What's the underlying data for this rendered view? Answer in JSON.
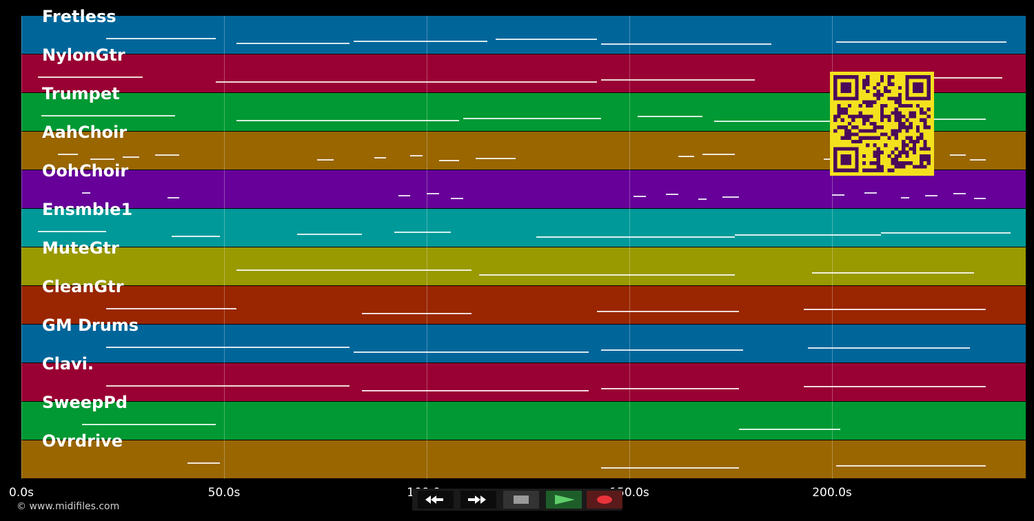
{
  "tracks": [
    {
      "name": "Fretless",
      "color": "#00669a"
    },
    {
      "name": "NylonGtr",
      "color": "#990033"
    },
    {
      "name": "Trumpet",
      "color": "#009933"
    },
    {
      "name": "AahChoir",
      "color": "#996600"
    },
    {
      "name": "OohChoir",
      "color": "#660099"
    },
    {
      "name": "Ensmble1",
      "color": "#009999"
    },
    {
      "name": "MuteGtr",
      "color": "#999900"
    },
    {
      "name": "CleanGtr",
      "color": "#992600"
    },
    {
      "name": "GM Drums",
      "color": "#00669a"
    },
    {
      "name": "Clavi.",
      "color": "#990033"
    },
    {
      "name": "SweepPd",
      "color": "#009933"
    },
    {
      "name": "Ovrdrive",
      "color": "#996600"
    }
  ],
  "timeline": {
    "ticks": [
      "0.0s",
      "50.0s",
      "100.0s",
      "150.0s",
      "200.0s"
    ],
    "tick_values": [
      0,
      50,
      100,
      150,
      200
    ],
    "max_seconds": 248
  },
  "note_segments": [
    [
      [
        21,
        48
      ],
      [
        53,
        81
      ],
      [
        82,
        115
      ],
      [
        117,
        142
      ],
      [
        143,
        185
      ],
      [
        201,
        243
      ]
    ],
    [
      [
        4,
        30
      ],
      [
        48,
        142
      ],
      [
        143,
        181
      ],
      [
        201,
        242
      ]
    ],
    [
      [
        5,
        38
      ],
      [
        53,
        108
      ],
      [
        109,
        143
      ],
      [
        152,
        168
      ],
      [
        171,
        208
      ],
      [
        209,
        238
      ]
    ],
    [
      [
        9,
        14
      ],
      [
        17,
        23
      ],
      [
        25,
        29
      ],
      [
        33,
        39
      ],
      [
        73,
        77
      ],
      [
        87,
        90
      ],
      [
        96,
        99
      ],
      [
        103,
        108
      ],
      [
        112,
        122
      ],
      [
        162,
        166
      ],
      [
        168,
        176
      ],
      [
        198,
        202
      ],
      [
        206,
        210
      ],
      [
        229,
        233
      ],
      [
        234,
        238
      ]
    ],
    [
      [
        15,
        17
      ],
      [
        36,
        39
      ],
      [
        93,
        96
      ],
      [
        100,
        103
      ],
      [
        106,
        109
      ],
      [
        151,
        154
      ],
      [
        159,
        162
      ],
      [
        167,
        169
      ],
      [
        173,
        177
      ],
      [
        200,
        203
      ],
      [
        208,
        211
      ],
      [
        217,
        219
      ],
      [
        223,
        226
      ],
      [
        230,
        233
      ],
      [
        235,
        238
      ]
    ],
    [
      [
        4,
        21
      ],
      [
        37,
        49
      ],
      [
        68,
        84
      ],
      [
        92,
        106
      ],
      [
        127,
        176
      ],
      [
        176,
        212
      ],
      [
        212,
        244
      ]
    ],
    [
      [
        53,
        111
      ],
      [
        113,
        176
      ],
      [
        195,
        235
      ]
    ],
    [
      [
        21,
        53
      ],
      [
        84,
        111
      ],
      [
        142,
        177
      ],
      [
        193,
        238
      ]
    ],
    [
      [
        21,
        81
      ],
      [
        82,
        140
      ],
      [
        143,
        178
      ],
      [
        194,
        234
      ]
    ],
    [
      [
        21,
        81
      ],
      [
        84,
        140
      ],
      [
        143,
        177
      ],
      [
        193,
        238
      ]
    ],
    [
      [
        15,
        48
      ],
      [
        177,
        202
      ]
    ],
    [
      [
        41,
        49
      ],
      [
        143,
        177
      ],
      [
        201,
        238
      ]
    ]
  ],
  "transport": {
    "rewind": "rewind-icon",
    "fast_forward": "fast-forward-icon",
    "stop": "stop-icon",
    "play": "play-icon",
    "record": "record-icon"
  },
  "credit": "© www.midifiles.com"
}
